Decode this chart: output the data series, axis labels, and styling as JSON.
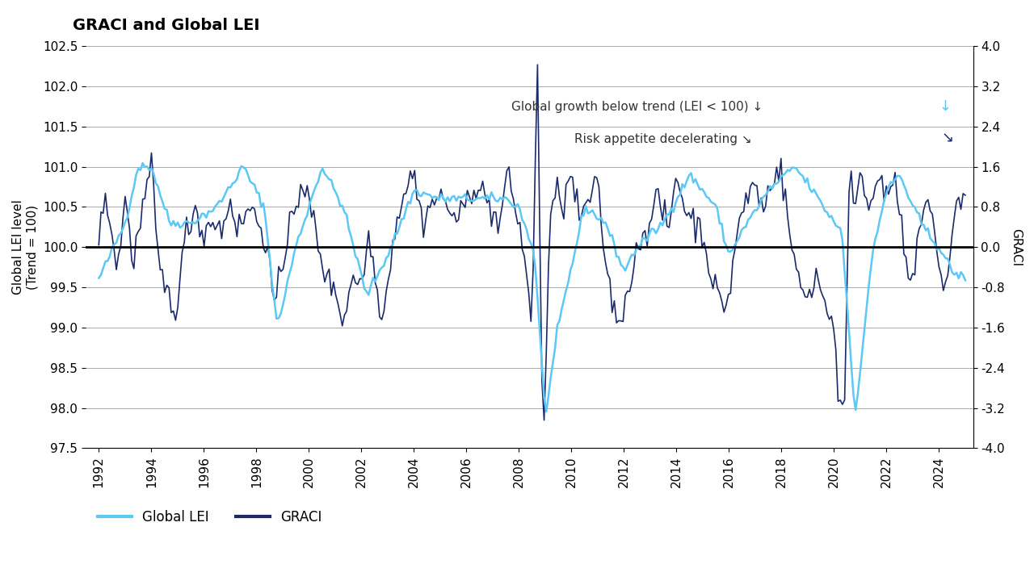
{
  "title": "GRACI and Global LEI",
  "ylabel_left": "Global LEI level\n(Trend = 100)",
  "ylabel_right": "GRACI",
  "ylim_left": [
    97.5,
    102.5
  ],
  "ylim_right": [
    -4.0,
    4.0
  ],
  "yticks_left": [
    97.5,
    98.0,
    98.5,
    99.0,
    99.5,
    100.0,
    100.5,
    101.0,
    101.5,
    102.0,
    102.5
  ],
  "yticks_right": [
    -4.0,
    -3.2,
    -2.4,
    -1.6,
    -0.8,
    0.0,
    0.8,
    1.6,
    2.4,
    3.2,
    4.0
  ],
  "xstart": 1992,
  "xend": 2025,
  "xtick_step": 2,
  "lei_color": "#5BC8F5",
  "graci_color": "#1B2A6B",
  "zero_line_color": "#000000",
  "grid_color": "#AAAAAA",
  "background_color": "#FFFFFF",
  "annotation1": "Global growth below trend (LEI < 100) ↓",
  "annotation2": "Risk appetite decelerating ↘",
  "annotation1_color": "#5BC8F5",
  "annotation2_color": "#1B2A6B",
  "legend_lei": "Global LEI",
  "legend_graci": "GRACI"
}
